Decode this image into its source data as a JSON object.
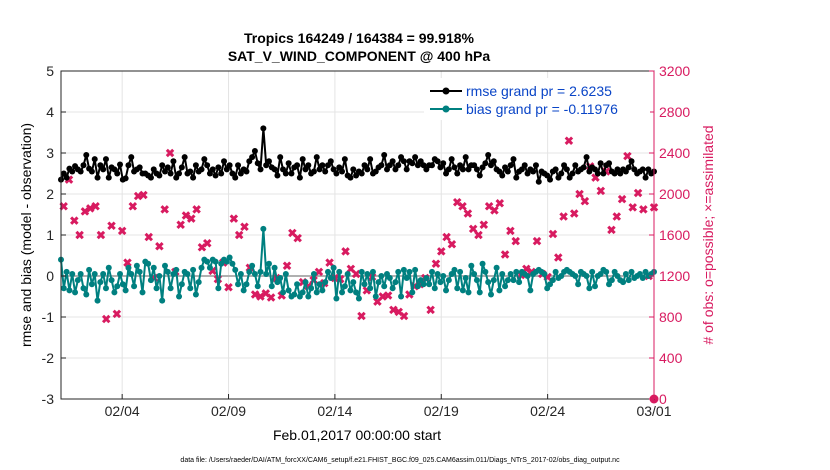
{
  "chart_data": {
    "type": "line",
    "title": "Tropics 164249 / 164384 = 99.918%",
    "subtitle": "SAT_V_WIND_COMPONENT @ 400 hPa",
    "xlabel": "Feb.01,2017 00:00:00 start",
    "ylabel_left": "rmse and bias (model - observation)",
    "ylabel_right": "# of obs: o=possible; ×=assimilated",
    "footnote": "data file: /Users/raeder/DAI/ATM_forcXX/CAM6_setup/f.e21.FHIST_BGC.f09_025.CAM6assim.011/Diags_NTrS_2017-02/obs_diag_output.nc",
    "x_tick_labels": [
      "02/04",
      "02/09",
      "02/14",
      "02/19",
      "02/24",
      "03/01"
    ],
    "x_tick_days": [
      3,
      8,
      13,
      18,
      23,
      28
    ],
    "xlim": [
      0.125,
      28.0
    ],
    "ylim_left": [
      -3,
      5
    ],
    "left_ticks": [
      "-3",
      "-2",
      "-1",
      "0",
      "1",
      "2",
      "3",
      "4",
      "5"
    ],
    "ylim_right": [
      0,
      3200
    ],
    "right_ticks": [
      "0",
      "400",
      "800",
      "1200",
      "1600",
      "2000",
      "2400",
      "2800",
      "3200"
    ],
    "colors": {
      "rmse": "#000000",
      "bias": "#008080",
      "obs": "#D81B60",
      "zero": "#b0b0b0",
      "legend_text": "#0a45c7"
    },
    "series": [
      {
        "name": "rmse grand pr = 2.6235",
        "marker": "circle",
        "values": [
          2.35,
          2.5,
          2.4,
          2.62,
          2.55,
          2.68,
          2.6,
          2.55,
          2.7,
          2.95,
          2.62,
          2.55,
          2.85,
          2.4,
          2.7,
          2.6,
          2.85,
          2.4,
          2.65,
          2.6,
          2.5,
          2.72,
          2.35,
          2.38,
          2.7,
          2.9,
          2.55,
          2.6,
          2.65,
          2.5,
          2.5,
          2.45,
          2.4,
          2.6,
          2.5,
          2.45,
          2.7,
          2.55,
          2.65,
          2.5,
          2.8,
          2.4,
          2.5,
          2.65,
          2.9,
          2.5,
          2.55,
          2.4,
          2.7,
          2.55,
          2.6,
          2.85,
          2.7,
          2.5,
          2.6,
          2.45,
          2.65,
          2.5,
          2.8,
          2.6,
          2.7,
          2.5,
          2.4,
          2.7,
          2.5,
          2.6,
          2.55,
          2.8,
          2.9,
          3.05,
          2.75,
          2.6,
          3.6,
          2.7,
          2.8,
          2.65,
          2.6,
          2.45,
          2.9,
          2.6,
          2.5,
          2.75,
          2.5,
          2.65,
          2.7,
          2.4,
          2.85,
          2.6,
          2.7,
          2.5,
          2.55,
          2.9,
          2.6,
          2.7,
          2.55,
          2.7,
          2.8,
          2.6,
          2.5,
          2.65,
          2.55,
          2.85,
          2.45,
          2.4,
          2.6,
          2.45,
          2.55,
          2.5,
          2.7,
          2.6,
          2.85,
          2.5,
          2.55,
          2.65,
          2.7,
          2.95,
          2.6,
          2.7,
          2.8,
          2.6,
          2.7,
          2.9,
          2.8,
          2.6,
          2.8,
          2.75,
          2.9,
          2.7,
          2.8,
          2.7,
          2.6,
          2.7,
          2.7,
          2.85,
          2.8,
          2.65,
          2.75,
          2.5,
          2.6,
          2.85,
          2.65,
          2.5,
          2.7,
          2.6,
          2.9,
          2.6,
          2.7,
          2.7,
          2.6,
          2.45,
          2.65,
          2.75,
          2.95,
          2.7,
          2.8,
          2.6,
          2.55,
          2.45,
          2.65,
          2.55,
          2.7,
          2.85,
          2.4,
          2.55,
          2.6,
          2.7,
          2.5,
          2.6,
          2.55,
          2.7,
          2.3,
          2.55,
          2.5,
          2.45,
          2.35,
          2.55,
          2.6,
          2.4,
          2.5,
          2.7,
          2.6,
          2.4,
          2.5,
          2.7,
          2.55,
          2.6,
          2.65,
          2.9,
          2.55,
          2.65,
          2.6,
          2.5,
          2.75,
          2.5,
          2.7,
          2.75,
          2.55,
          2.5,
          2.6,
          2.5,
          2.6,
          2.55,
          2.65,
          2.8,
          2.6,
          2.5,
          2.55,
          2.6,
          2.4,
          2.6,
          2.5,
          2.55
        ]
      },
      {
        "name": "bias grand pr = -0.11976",
        "marker": "circle",
        "values": [
          0.4,
          -0.3,
          0.1,
          -0.35,
          0.05,
          -0.4,
          -0.1,
          0.05,
          -0.3,
          -0.45,
          0.15,
          -0.2,
          0.05,
          -0.6,
          -0.15,
          0.05,
          -0.3,
          0.2,
          -0.1,
          -0.4,
          -0.25,
          0.05,
          -0.2,
          -0.35,
          0.2,
          0.05,
          -0.25,
          0.25,
          0.1,
          -0.4,
          0.35,
          0.3,
          -0.1,
          0.2,
          -0.3,
          0.0,
          -0.6,
          0.25,
          0.1,
          -0.3,
          0.05,
          0.15,
          -0.5,
          -0.2,
          0.1,
          0.05,
          -0.3,
          0.15,
          -0.45,
          -0.15,
          0.2,
          0.4,
          0.35,
          0.2,
          0.4,
          0.35,
          -0.3,
          0.3,
          0.4,
          0.35,
          0.45,
          0.3,
          0.15,
          -0.2,
          0.05,
          -0.35,
          -0.2,
          0.1,
          0.25,
          0.05,
          -0.25,
          0.1,
          1.15,
          0.05,
          0.3,
          -0.25,
          0.2,
          -0.15,
          -0.05,
          -0.4,
          0.05,
          -0.35,
          -0.5,
          -0.45,
          -0.2,
          -0.5,
          -0.4,
          -0.15,
          -0.5,
          -0.3,
          0.05,
          -0.4,
          -0.2,
          -0.35,
          -0.15,
          0.1,
          -0.05,
          0.2,
          -0.55,
          0.1,
          -0.4,
          -0.25,
          0.05,
          -0.35,
          -0.15,
          -0.4,
          -0.55,
          0.1,
          -0.2,
          0.05,
          -0.3,
          0.1,
          -0.5,
          -0.15,
          0.0,
          -0.25,
          0.05,
          -0.05,
          -0.3,
          -0.15,
          0.1,
          -0.5,
          0.15,
          -0.05,
          0.1,
          -0.4,
          0.15,
          -0.25,
          -0.1,
          -0.2,
          -0.05,
          -0.2,
          0.1,
          -0.3,
          0.05,
          -0.15,
          0.0,
          -0.35,
          -0.1,
          0.05,
          0.15,
          -0.3,
          0.1,
          -0.35,
          -0.05,
          -0.4,
          0.25,
          0.05,
          -0.1,
          -0.4,
          0.3,
          0.1,
          -0.15,
          -0.45,
          -0.1,
          0.2,
          -0.35,
          0.05,
          -0.25,
          -0.1,
          0.05,
          -0.1,
          0.1,
          -0.15,
          0.1,
          0.05,
          0.0,
          -0.35,
          0.05,
          0.1,
          0.15,
          0.1,
          0.05,
          -0.3,
          -0.2,
          -0.1,
          0.1,
          -0.05,
          0.0,
          0.1,
          0.15,
          0.1,
          0.05,
          0.0,
          -0.2,
          0.1,
          0.05,
          0.0,
          -0.3,
          0.1,
          -0.25,
          0.0,
          0.05,
          0.15,
          0.1,
          -0.2,
          -0.1,
          0.1,
          0.0,
          -0.1,
          -0.15,
          0.05,
          -0.1,
          0.1,
          -0.05,
          0.0,
          0.05,
          -0.05,
          0.1,
          0.0,
          0.05,
          0.1
        ]
      }
    ],
    "obs_assimilated": {
      "name": "# of obs assimilated",
      "marker": "x",
      "points": [
        [
          0.25,
          1880
        ],
        [
          0.5,
          2140
        ],
        [
          0.75,
          1740
        ],
        [
          1.0,
          1600
        ],
        [
          1.25,
          1830
        ],
        [
          1.5,
          1860
        ],
        [
          1.75,
          1880
        ],
        [
          2.0,
          1600
        ],
        [
          2.25,
          780
        ],
        [
          2.5,
          1690
        ],
        [
          2.75,
          830
        ],
        [
          3.0,
          1640
        ],
        [
          3.25,
          1330
        ],
        [
          3.5,
          1880
        ],
        [
          3.75,
          1980
        ],
        [
          4.0,
          1990
        ],
        [
          4.25,
          1580
        ],
        [
          4.5,
          1180
        ],
        [
          4.75,
          1490
        ],
        [
          5.0,
          1850
        ],
        [
          5.25,
          2400
        ],
        [
          5.5,
          1240
        ],
        [
          5.75,
          1700
        ],
        [
          6.0,
          1790
        ],
        [
          6.25,
          1760
        ],
        [
          6.5,
          1850
        ],
        [
          6.75,
          1480
        ],
        [
          7.0,
          1520
        ],
        [
          7.25,
          1250
        ],
        [
          7.5,
          1170
        ],
        [
          7.75,
          1330
        ],
        [
          8.0,
          1090
        ],
        [
          8.25,
          1760
        ],
        [
          8.5,
          1600
        ],
        [
          8.75,
          1680
        ],
        [
          9.0,
          1280
        ],
        [
          9.25,
          1020
        ],
        [
          9.5,
          1000
        ],
        [
          9.75,
          1030
        ],
        [
          10.0,
          990
        ],
        [
          10.25,
          1180
        ],
        [
          10.5,
          1010
        ],
        [
          10.75,
          1300
        ],
        [
          11.0,
          1620
        ],
        [
          11.25,
          1570
        ],
        [
          11.5,
          1140
        ],
        [
          11.75,
          1100
        ],
        [
          12.0,
          1160
        ],
        [
          12.25,
          1240
        ],
        [
          12.5,
          1130
        ],
        [
          12.75,
          1330
        ],
        [
          13.0,
          1180
        ],
        [
          13.25,
          1170
        ],
        [
          13.5,
          1440
        ],
        [
          13.75,
          1270
        ],
        [
          14.0,
          1220
        ],
        [
          14.25,
          810
        ],
        [
          14.5,
          1060
        ],
        [
          14.75,
          1190
        ],
        [
          15.0,
          950
        ],
        [
          15.25,
          1000
        ],
        [
          15.5,
          1010
        ],
        [
          15.75,
          870
        ],
        [
          16.0,
          850
        ],
        [
          16.25,
          810
        ],
        [
          16.5,
          1020
        ],
        [
          16.75,
          1100
        ],
        [
          17.0,
          1120
        ],
        [
          17.25,
          1180
        ],
        [
          17.5,
          870
        ],
        [
          17.75,
          1320
        ],
        [
          18.0,
          1440
        ],
        [
          18.25,
          1580
        ],
        [
          18.5,
          1510
        ],
        [
          18.75,
          1920
        ],
        [
          19.0,
          1880
        ],
        [
          19.25,
          1810
        ],
        [
          19.5,
          1660
        ],
        [
          19.75,
          1600
        ],
        [
          20.0,
          1700
        ],
        [
          20.25,
          1880
        ],
        [
          20.5,
          1840
        ],
        [
          20.75,
          1910
        ],
        [
          21.0,
          1410
        ],
        [
          21.25,
          1640
        ],
        [
          21.5,
          1540
        ],
        [
          21.75,
          1210
        ],
        [
          22.0,
          1270
        ],
        [
          22.25,
          1240
        ],
        [
          22.5,
          1540
        ],
        [
          22.75,
          1220
        ],
        [
          23.0,
          1190
        ],
        [
          23.25,
          1610
        ],
        [
          23.5,
          1380
        ],
        [
          23.75,
          1780
        ],
        [
          24.0,
          2520
        ],
        [
          24.25,
          1810
        ],
        [
          24.5,
          2000
        ],
        [
          24.75,
          1930
        ],
        [
          25.0,
          2270
        ],
        [
          25.25,
          2160
        ],
        [
          25.5,
          2030
        ],
        [
          25.75,
          2220
        ],
        [
          26.0,
          1650
        ],
        [
          26.25,
          1780
        ],
        [
          26.5,
          1950
        ],
        [
          26.75,
          2370
        ],
        [
          27.0,
          1870
        ],
        [
          27.25,
          2010
        ],
        [
          27.5,
          1850
        ],
        [
          27.75,
          1200
        ],
        [
          28.0,
          1870
        ]
      ]
    },
    "obs_possible_last": [
      28.0,
      0
    ]
  }
}
